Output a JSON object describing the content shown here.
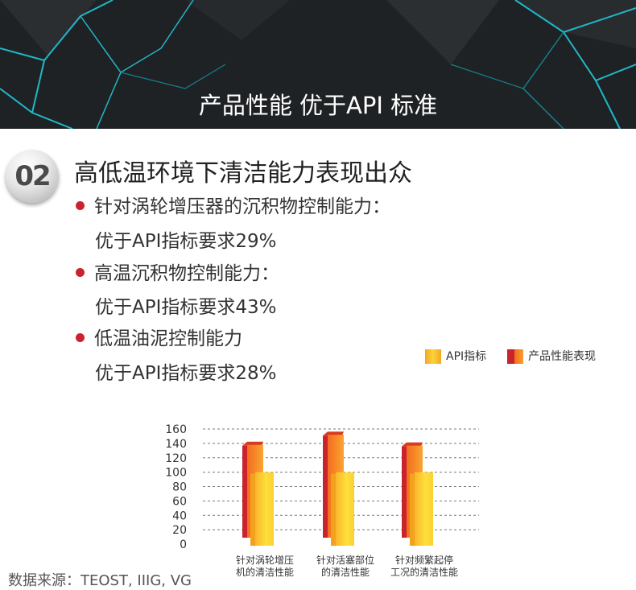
{
  "banner": {
    "title": "产品性能 优于API 标准"
  },
  "section": {
    "badge": "02",
    "headline": "高低温环境下清洁能力表现出众",
    "bullets": [
      {
        "label": "针对涡轮增压器的沉积物控制能力：",
        "value": "优于API指标要求29%"
      },
      {
        "label": "高温沉积物控制能力：",
        "value": "优于API指标要求43%"
      },
      {
        "label": "低温油泥控制能力",
        "value": "优于API指标要求28%"
      }
    ]
  },
  "colors": {
    "api": "#f8c42a",
    "product": "#e8502a",
    "bullet": "#c9232d",
    "banner_bg": "#1f2224",
    "banner_line": "#1fb8c8"
  },
  "chart_data": {
    "type": "bar",
    "categories": [
      [
        "针对涡轮增压",
        "机的清洁性能"
      ],
      [
        "针对活塞部位",
        "的清洁性能"
      ],
      [
        "针对频繁起停",
        "工况的清洁性能"
      ]
    ],
    "series": [
      {
        "name": "产品性能表现",
        "values": [
          129,
          143,
          128
        ]
      },
      {
        "name": "API指标",
        "values": [
          100,
          100,
          100
        ]
      }
    ],
    "ylim": [
      0,
      160
    ],
    "yticks": [
      0,
      20,
      40,
      60,
      80,
      100,
      120,
      140,
      160
    ],
    "legend": [
      "API指标",
      "产品性能表现"
    ],
    "grid": true
  },
  "footer": {
    "source": "数据来源：TEOST, IIIG, VG"
  }
}
